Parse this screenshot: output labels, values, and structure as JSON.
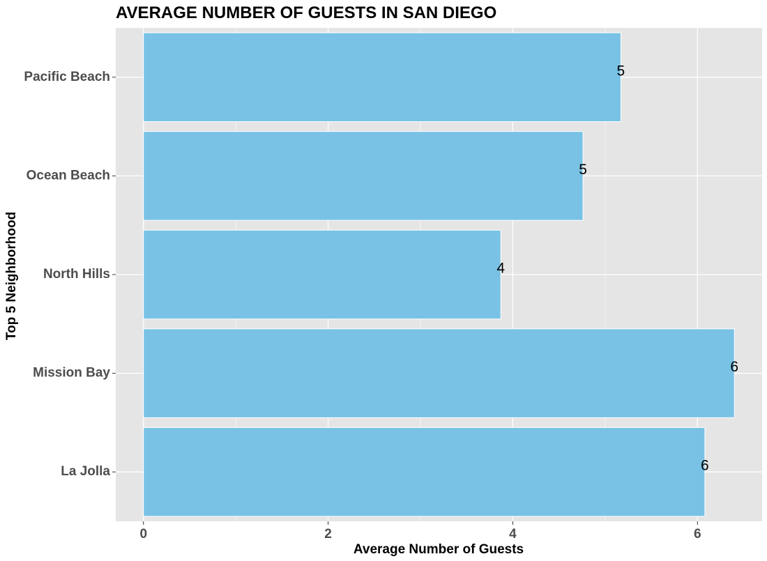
{
  "chart_data": {
    "type": "bar",
    "orientation": "horizontal",
    "title": "AVERAGE NUMBER OF GUESTS IN SAN DIEGO",
    "xlabel": "Average Number of Guests",
    "ylabel": "Top 5 Neighborhood",
    "categories": [
      "La Jolla",
      "Mission Bay",
      "North Hills",
      "Ocean Beach",
      "Pacific Beach"
    ],
    "values": [
      6.08,
      6.4,
      3.87,
      4.76,
      5.17
    ],
    "data_labels": [
      "6",
      "6",
      "4",
      "5",
      "5"
    ],
    "xlim": [
      -0.3,
      6.7
    ],
    "xticks": [
      0,
      2,
      4,
      6
    ],
    "tick_labels": [
      "0",
      "2",
      "4",
      "6"
    ],
    "grid": true,
    "legend": "none",
    "colors": {
      "bar_fill": "#79c2e5",
      "bar_stroke": "#ffffff",
      "panel_background": "#e5e5e5",
      "grid": "#ffffff"
    }
  }
}
